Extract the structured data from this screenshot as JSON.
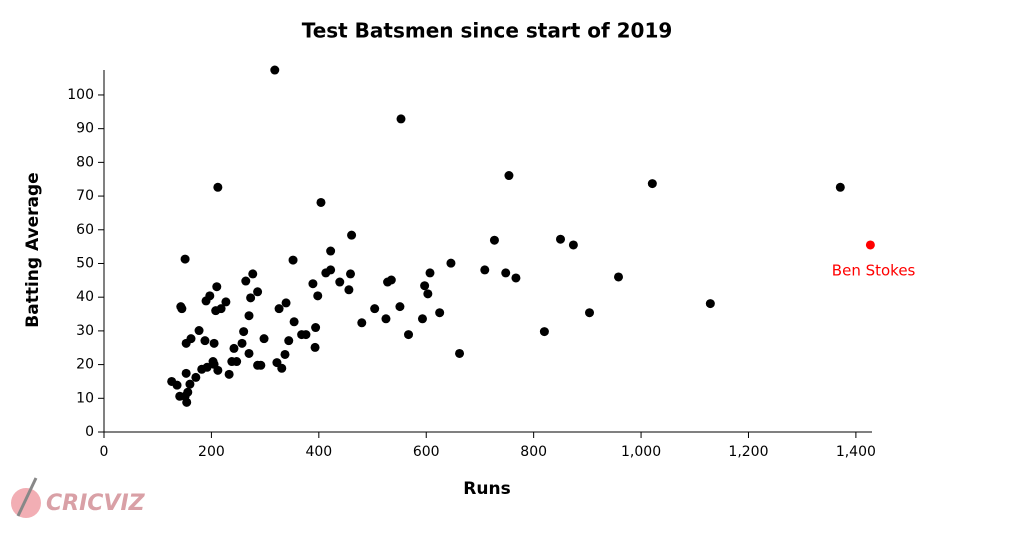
{
  "chart_data": {
    "type": "scatter",
    "title": "Test Batsmen since start of 2019",
    "x_label": "Runs",
    "y_label": "Batting Average",
    "color": "#000000",
    "x": [
      126,
      136,
      141,
      143,
      145,
      151,
      151,
      153,
      153,
      154,
      156,
      162,
      160,
      171,
      177,
      182,
      188,
      190,
      192,
      197,
      203,
      205,
      205,
      208,
      210,
      212,
      212,
      218,
      227,
      233,
      238,
      242,
      247,
      257,
      260,
      264,
      270,
      270,
      273,
      277,
      286,
      286,
      292,
      298,
      318,
      322,
      326,
      331,
      337,
      339,
      344,
      352,
      354,
      368,
      376,
      389,
      394,
      393,
      398,
      404,
      413,
      422,
      422,
      439,
      456,
      459,
      461,
      480,
      504,
      525,
      528,
      535,
      551,
      553,
      567,
      593,
      597,
      603,
      607,
      625,
      646,
      662,
      709,
      727,
      748,
      754,
      767,
      820,
      850,
      874,
      904,
      958,
      1021,
      1129,
      1371
    ],
    "values": [
      15.0,
      13.9,
      10.6,
      37.2,
      36.6,
      51.3,
      10.6,
      17.4,
      26.3,
      8.8,
      11.8,
      27.7,
      14.2,
      16.2,
      30.1,
      18.6,
      27.1,
      38.9,
      19.2,
      40.4,
      20.9,
      26.3,
      20.1,
      36.0,
      43.1,
      72.6,
      18.3,
      36.6,
      38.6,
      17.1,
      20.9,
      24.8,
      20.9,
      26.3,
      29.8,
      44.8,
      34.5,
      23.3,
      39.8,
      46.9,
      41.6,
      19.8,
      19.8,
      27.7,
      107.4,
      20.6,
      36.6,
      18.9,
      23.0,
      38.3,
      27.1,
      51.0,
      32.7,
      28.9,
      28.9,
      44.0,
      31.0,
      25.1,
      40.4,
      68.1,
      47.2,
      48.1,
      53.7,
      44.5,
      42.2,
      46.9,
      58.4,
      32.4,
      36.6,
      33.6,
      44.5,
      45.1,
      37.2,
      92.9,
      28.9,
      33.6,
      43.4,
      41.0,
      47.2,
      35.4,
      50.1,
      23.3,
      48.1,
      56.9,
      47.2,
      76.1,
      45.7,
      29.8,
      57.2,
      55.5,
      35.4,
      46.0,
      73.7,
      38.1,
      72.6
    ],
    "highlight": {
      "label": "Ben Stokes",
      "x": 1427,
      "value": 55.5,
      "color": "#ff0000"
    },
    "xlim": [
      0,
      1430
    ],
    "ylim": [
      0,
      108
    ],
    "xticks": [
      0,
      200,
      400,
      600,
      800,
      {
        "value": 1000,
        "label": "1,000"
      },
      {
        "value": 1200,
        "label": "1,200"
      },
      {
        "value": 1400,
        "label": "1,400"
      }
    ],
    "yticks": [
      0,
      10,
      20,
      30,
      40,
      50,
      60,
      70,
      80,
      90,
      100
    ],
    "grid": false
  },
  "logo": "CRICVIZ"
}
